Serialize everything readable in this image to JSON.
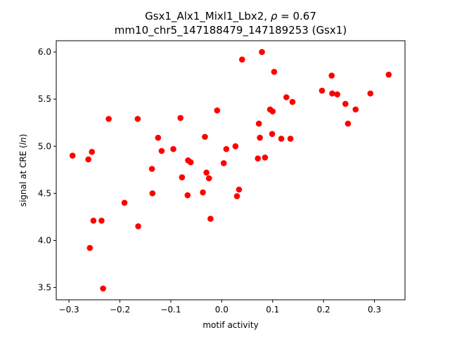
{
  "chart_data": {
    "type": "scatter",
    "title_line1_prefix": "Gsx1_Alx1_Mixl1_Lbx2, ",
    "title_rho_symbol": "ρ",
    "title_rho_value": " = 0.67",
    "title_line2": "mm10_chr5_147188479_147189253 (Gsx1)",
    "xlabel": "motif activity",
    "ylabel_prefix": "signal at CRE (",
    "ylabel_italic": "ln",
    "ylabel_suffix": ")",
    "xlim": [
      -0.325,
      0.36
    ],
    "ylim": [
      3.37,
      6.12
    ],
    "xticks": [
      -0.3,
      -0.2,
      -0.1,
      0.0,
      0.1,
      0.2,
      0.3
    ],
    "xtick_labels": [
      "−0.3",
      "−0.2",
      "−0.1",
      "0.0",
      "0.1",
      "0.2",
      "0.3"
    ],
    "yticks": [
      3.5,
      4.0,
      4.5,
      5.0,
      5.5,
      6.0
    ],
    "ytick_labels": [
      "3.5",
      "4.0",
      "4.5",
      "5.0",
      "5.5",
      "6.0"
    ],
    "grid": false,
    "legend": "none",
    "point_color": "#ff0000",
    "points": [
      {
        "x": -0.293,
        "y": 4.9
      },
      {
        "x": -0.262,
        "y": 4.86
      },
      {
        "x": -0.255,
        "y": 4.94
      },
      {
        "x": -0.252,
        "y": 4.21
      },
      {
        "x": -0.259,
        "y": 3.92
      },
      {
        "x": -0.236,
        "y": 4.21
      },
      {
        "x": -0.233,
        "y": 3.49
      },
      {
        "x": -0.222,
        "y": 5.29
      },
      {
        "x": -0.191,
        "y": 4.4
      },
      {
        "x": -0.165,
        "y": 5.29
      },
      {
        "x": -0.164,
        "y": 4.15
      },
      {
        "x": -0.137,
        "y": 4.76
      },
      {
        "x": -0.136,
        "y": 4.5
      },
      {
        "x": -0.125,
        "y": 5.09
      },
      {
        "x": -0.118,
        "y": 4.95
      },
      {
        "x": -0.095,
        "y": 4.97
      },
      {
        "x": -0.081,
        "y": 5.3
      },
      {
        "x": -0.078,
        "y": 4.67
      },
      {
        "x": -0.067,
        "y": 4.48
      },
      {
        "x": -0.066,
        "y": 4.85
      },
      {
        "x": -0.061,
        "y": 4.83
      },
      {
        "x": -0.037,
        "y": 4.51
      },
      {
        "x": -0.033,
        "y": 5.1
      },
      {
        "x": -0.03,
        "y": 4.72
      },
      {
        "x": -0.025,
        "y": 4.66
      },
      {
        "x": -0.022,
        "y": 4.23
      },
      {
        "x": -0.009,
        "y": 5.38
      },
      {
        "x": 0.004,
        "y": 4.82
      },
      {
        "x": 0.009,
        "y": 4.97
      },
      {
        "x": 0.027,
        "y": 5.0
      },
      {
        "x": 0.03,
        "y": 4.47
      },
      {
        "x": 0.034,
        "y": 4.54
      },
      {
        "x": 0.04,
        "y": 5.92
      },
      {
        "x": 0.071,
        "y": 4.87
      },
      {
        "x": 0.073,
        "y": 5.24
      },
      {
        "x": 0.075,
        "y": 5.09
      },
      {
        "x": 0.079,
        "y": 6.0
      },
      {
        "x": 0.085,
        "y": 4.88
      },
      {
        "x": 0.095,
        "y": 5.39
      },
      {
        "x": 0.099,
        "y": 5.13
      },
      {
        "x": 0.1,
        "y": 5.37
      },
      {
        "x": 0.103,
        "y": 5.79
      },
      {
        "x": 0.117,
        "y": 5.08
      },
      {
        "x": 0.127,
        "y": 5.52
      },
      {
        "x": 0.135,
        "y": 5.08
      },
      {
        "x": 0.139,
        "y": 5.47
      },
      {
        "x": 0.197,
        "y": 5.59
      },
      {
        "x": 0.216,
        "y": 5.75
      },
      {
        "x": 0.217,
        "y": 5.56
      },
      {
        "x": 0.227,
        "y": 5.55
      },
      {
        "x": 0.243,
        "y": 5.45
      },
      {
        "x": 0.248,
        "y": 5.24
      },
      {
        "x": 0.263,
        "y": 5.39
      },
      {
        "x": 0.292,
        "y": 5.56
      },
      {
        "x": 0.328,
        "y": 5.76
      }
    ]
  }
}
